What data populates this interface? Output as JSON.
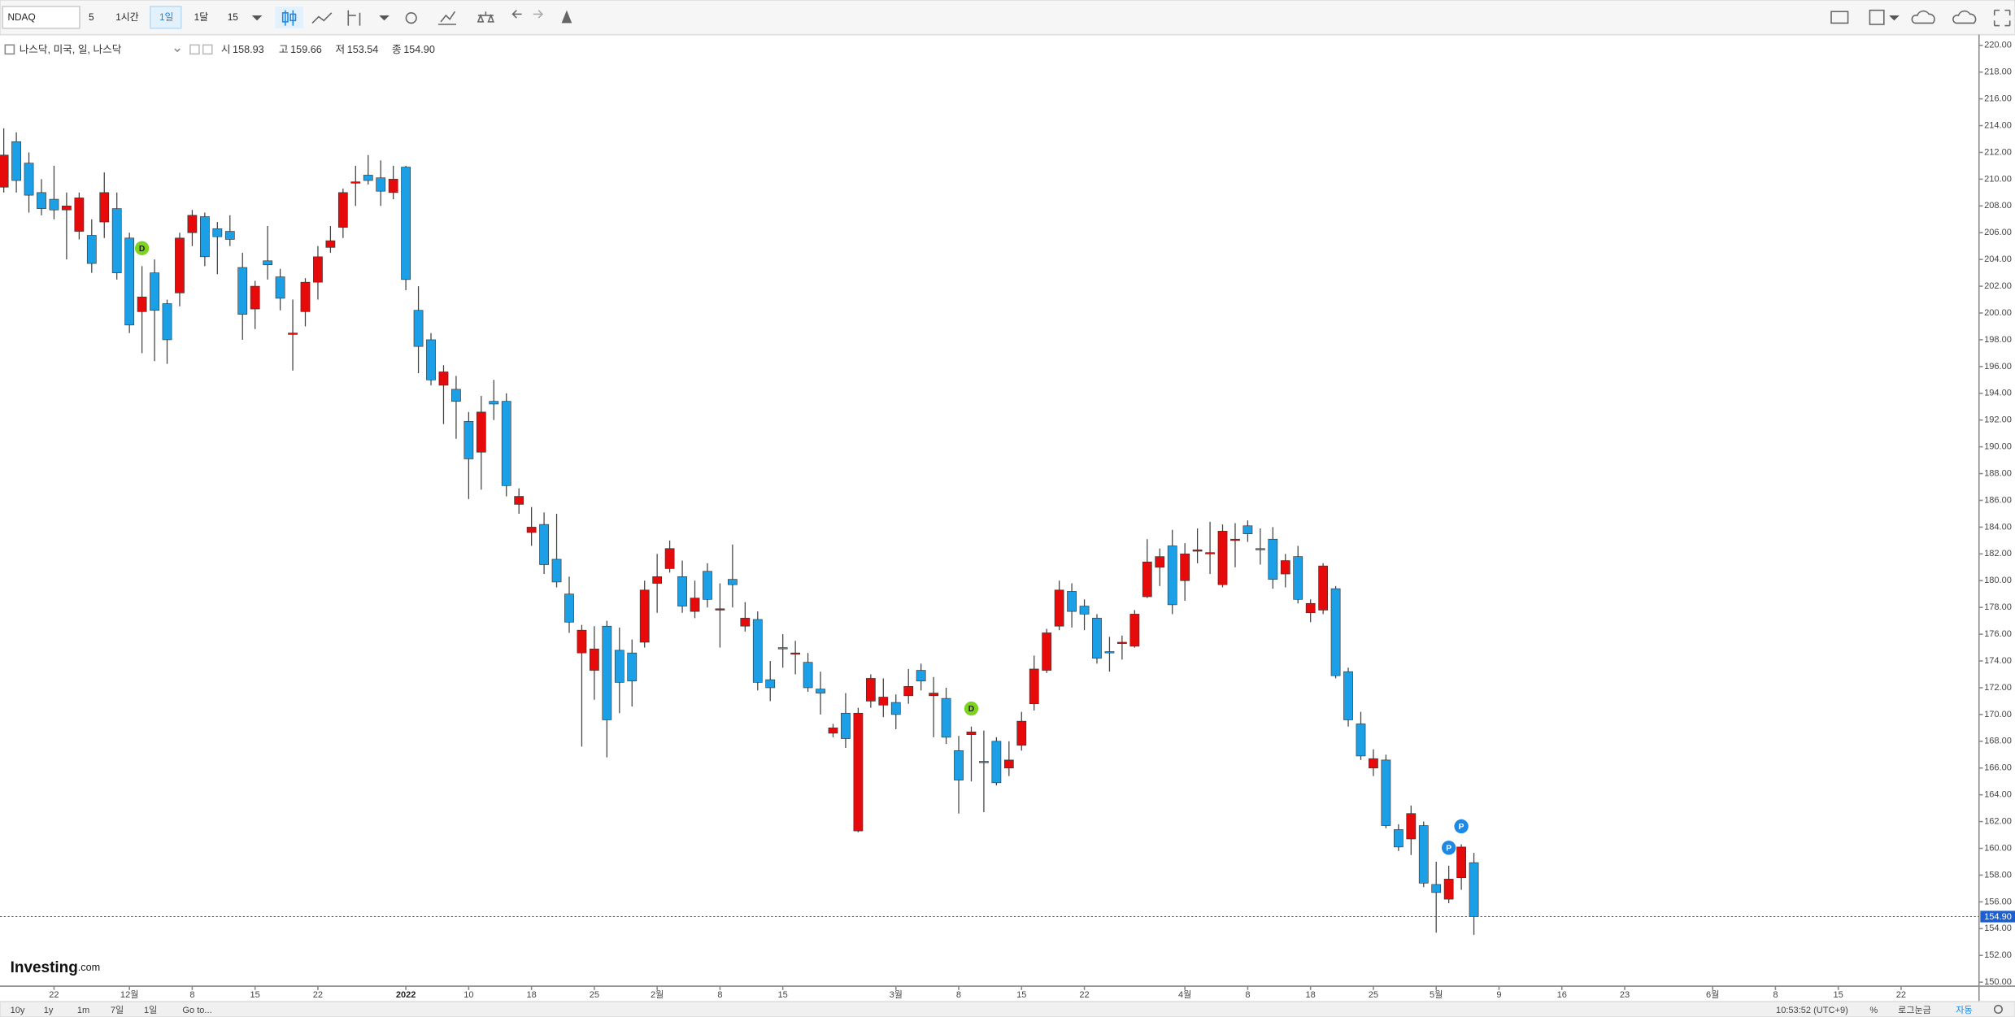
{
  "ui": {
    "toolbar": {
      "symbol": "NDAQ",
      "interval_a": "5",
      "interval_b": "1시간",
      "interval_c": "1일",
      "interval_d": "1달",
      "interval_e": "15"
    },
    "legend": {
      "name": "나스닥, 미국, 일, 나스닥",
      "open_label": "시",
      "open": "158.93",
      "high_label": "고",
      "high": "159.66",
      "low_label": "저",
      "low": "153.54",
      "close_label": "종",
      "close": "154.90"
    },
    "logo": {
      "main": "Investing",
      "suffix": ".com"
    },
    "bottom": {
      "ranges": [
        "10y",
        "1y",
        "1m",
        "7일",
        "1일"
      ],
      "goto": "Go to...",
      "time": "10:53:52 (UTC+9)",
      "percent": "%",
      "log": "로그눈금",
      "auto": "자동"
    }
  },
  "chart_data": {
    "type": "candlestick",
    "up_color": "#e60a0a",
    "down_color": "#1b9fe6",
    "x": [
      0,
      1,
      2,
      3,
      4,
      5,
      6,
      7,
      8,
      9,
      10,
      11,
      12,
      13,
      14,
      15,
      16,
      17,
      18,
      19,
      20,
      21,
      22,
      23,
      24,
      25,
      26,
      27,
      28,
      29,
      30,
      31,
      32,
      33,
      34,
      35,
      36,
      37,
      38,
      39,
      40,
      41,
      42,
      43,
      44,
      45,
      46,
      47,
      48,
      49,
      50,
      51,
      52,
      53,
      54,
      55,
      56,
      57,
      58,
      59,
      60,
      61,
      62,
      63,
      64,
      65,
      66,
      67,
      68,
      69,
      70,
      71,
      72,
      73,
      74,
      75,
      76,
      77,
      78,
      79,
      80,
      81,
      82,
      83,
      84,
      85,
      86,
      87,
      88,
      89,
      90,
      91,
      92,
      93,
      94,
      95,
      96,
      97,
      98,
      99,
      100,
      101,
      102,
      103,
      104,
      105,
      106,
      107,
      108,
      109,
      110,
      111,
      112,
      113,
      114,
      115,
      116,
      117
    ],
    "open": [
      209.4,
      212.8,
      211.2,
      209,
      208.5,
      207.7,
      206.1,
      205.8,
      206.8,
      207.8,
      205.6,
      200.1,
      203,
      200.7,
      201.5,
      206,
      207.2,
      206.3,
      206.1,
      203.4,
      200.3,
      203.9,
      202.7,
      198.4,
      200.1,
      202.3,
      204.9,
      206.4,
      209.7,
      210.3,
      210.1,
      209,
      210.9,
      200.2,
      198,
      194.6,
      194.3,
      191.9,
      189.6,
      193.4,
      193.4,
      185.7,
      183.6,
      184.2,
      181.6,
      179,
      174.6,
      173.3,
      176.6,
      174.8,
      174.6,
      175.4,
      179.8,
      180.9,
      180.3,
      177.7,
      180.7,
      177.8,
      180.1,
      176.6,
      177.1,
      172.6,
      175,
      174.5,
      173.9,
      171.9,
      168.6,
      170.1,
      161.3,
      171,
      170.7,
      170.9,
      171.4,
      173.3,
      171.4,
      171.2,
      167.3,
      168.5,
      166.5,
      168,
      166,
      167.7,
      170.8,
      173.3,
      176.6,
      179.2,
      178.1,
      177.2,
      174.7,
      175.3,
      175.1,
      178.8,
      181,
      182.6,
      180,
      182.2,
      182,
      179.7,
      183,
      184.1,
      182.4,
      183.1,
      180.5,
      181.8,
      177.6,
      177.8,
      179.4,
      173.2,
      169.3,
      166,
      166.6,
      161.4,
      160.7,
      161.7,
      157.3,
      156.2,
      157.8,
      158.93
    ],
    "high": [
      213.8,
      213.5,
      212,
      210,
      211,
      209,
      209,
      207,
      210.5,
      209,
      206,
      203.5,
      204,
      201,
      206,
      207.7,
      207.5,
      206.8,
      207.3,
      204.5,
      202.4,
      206.5,
      203.3,
      201,
      202.6,
      205,
      206.5,
      209.3,
      211,
      211.8,
      211.4,
      211,
      211,
      202,
      198.5,
      196.1,
      195.3,
      192.6,
      193.8,
      195,
      194,
      186.9,
      185.5,
      185.1,
      185,
      180.3,
      176.7,
      176.6,
      177,
      176.5,
      175.6,
      180,
      182,
      183,
      181.5,
      180,
      181.3,
      179.8,
      182.7,
      178.4,
      177.7,
      174,
      176,
      175.5,
      174.6,
      173.2,
      169.3,
      171.6,
      170.5,
      173,
      172.7,
      171.5,
      173.4,
      173.8,
      172.8,
      172,
      168.4,
      169.1,
      168.8,
      168.3,
      168,
      170.2,
      174.4,
      176.4,
      180,
      179.8,
      178.6,
      177.5,
      175.8,
      175.9,
      177.8,
      183.1,
      182.4,
      183.8,
      182.8,
      183.9,
      184.4,
      184.2,
      184.3,
      184.5,
      183.9,
      184,
      182,
      182.6,
      178.6,
      181.3,
      179.6,
      173.5,
      170.2,
      167.4,
      167,
      161.8,
      163.2,
      162,
      159,
      158.7,
      160.3,
      159.66
    ],
    "low": [
      209,
      209,
      207.5,
      207.3,
      207,
      204,
      205.5,
      203,
      205.6,
      202.5,
      198.5,
      197,
      196.4,
      196.2,
      200.5,
      205,
      203.5,
      202.9,
      205,
      198,
      198.8,
      202.5,
      200.2,
      195.7,
      199,
      201,
      204.5,
      205.6,
      208,
      209.6,
      208,
      208.5,
      201.7,
      195.5,
      194.6,
      191.7,
      190.6,
      186.1,
      186.8,
      192,
      186.3,
      185,
      182.6,
      180.5,
      179.5,
      176.1,
      167.6,
      171.1,
      166.8,
      170.1,
      170.6,
      175,
      177.6,
      180.6,
      177.6,
      177.2,
      178,
      175,
      178,
      176.2,
      171.8,
      171,
      173.5,
      173,
      171.7,
      170,
      168.3,
      167.5,
      161.2,
      170.5,
      169.8,
      168.9,
      170.8,
      171.8,
      168.3,
      167.8,
      162.6,
      165,
      162.7,
      164.7,
      165.4,
      167.3,
      170.3,
      173.1,
      176.3,
      176.5,
      176.3,
      173.8,
      173.2,
      174.1,
      175,
      178.7,
      179.6,
      177.5,
      178.5,
      181.3,
      180.5,
      179.5,
      181,
      182.9,
      181.2,
      179.4,
      179.5,
      178.3,
      176.9,
      177.5,
      172.7,
      169.1,
      166.6,
      165.4,
      161.5,
      159.8,
      159.5,
      157.1,
      153.7,
      155.9,
      156.9,
      153.54
    ],
    "close": [
      211.8,
      209.9,
      208.8,
      207.8,
      207.7,
      208,
      208.6,
      203.7,
      209,
      203,
      199.1,
      201.2,
      200.2,
      198,
      205.6,
      207.3,
      204.2,
      205.7,
      205.5,
      199.9,
      202,
      203.6,
      201.1,
      198.5,
      202.3,
      204.2,
      205.4,
      209,
      209.8,
      209.9,
      209.1,
      210,
      202.5,
      197.5,
      195,
      195.6,
      193.4,
      189.1,
      192.6,
      193.2,
      187.1,
      186.3,
      184,
      181.2,
      179.9,
      176.9,
      176.3,
      174.9,
      169.6,
      172.4,
      172.5,
      179.3,
      180.3,
      182.4,
      178.1,
      178.7,
      178.6,
      177.9,
      179.7,
      177.2,
      172.4,
      172,
      174.9,
      174.6,
      172,
      171.6,
      169,
      168.2,
      170.1,
      172.7,
      171.3,
      170,
      172.1,
      172.5,
      171.6,
      168.3,
      165.1,
      168.7,
      166.4,
      164.9,
      166.6,
      169.5,
      173.4,
      176.1,
      179.3,
      177.7,
      177.5,
      174.2,
      174.6,
      175.4,
      177.5,
      181.4,
      181.8,
      178.2,
      182,
      182.3,
      182.1,
      183.7,
      183.1,
      183.5,
      182.3,
      180.1,
      181.5,
      178.6,
      178.3,
      181.1,
      172.9,
      169.6,
      166.9,
      166.7,
      161.7,
      160.1,
      162.6,
      157.4,
      156.7,
      157.7,
      160.1,
      154.9
    ],
    "markers": [
      {
        "x": 11,
        "label": "D",
        "color": "#7ed321"
      },
      {
        "x": 77,
        "label": "D",
        "color": "#7ed321"
      },
      {
        "x": 115,
        "label": "P",
        "color": "#1e88e5"
      },
      {
        "x": 116,
        "label": "P",
        "color": "#1e88e5"
      }
    ],
    "last_price": 154.9,
    "last_price_label": "154.90",
    "last_price_color": "#1e5fd0",
    "xlim": [
      -0.3,
      157.2
    ],
    "ylim": [
      149.7,
      220.7
    ],
    "grid": false,
    "xticks": [
      {
        "value": 4,
        "label": "22"
      },
      {
        "value": 10,
        "label": "12월"
      },
      {
        "value": 15,
        "label": "8"
      },
      {
        "value": 20,
        "label": "15"
      },
      {
        "value": 25,
        "label": "22"
      },
      {
        "value": 32,
        "label": "2022"
      },
      {
        "value": 37,
        "label": "10"
      },
      {
        "value": 42,
        "label": "18"
      },
      {
        "value": 47,
        "label": "25"
      },
      {
        "value": 52,
        "label": "2월"
      },
      {
        "value": 57,
        "label": "8"
      },
      {
        "value": 62,
        "label": "15"
      },
      {
        "value": 71,
        "label": "3월"
      },
      {
        "value": 76,
        "label": "8"
      },
      {
        "value": 81,
        "label": "15"
      },
      {
        "value": 86,
        "label": "22"
      },
      {
        "value": 94,
        "label": "4월"
      },
      {
        "value": 99,
        "label": "8"
      },
      {
        "value": 104,
        "label": "18"
      },
      {
        "value": 109,
        "label": "25"
      },
      {
        "value": 114,
        "label": "5월"
      },
      {
        "value": 119,
        "label": "9"
      },
      {
        "value": 124,
        "label": "16"
      },
      {
        "value": 129,
        "label": "23"
      },
      {
        "value": 136,
        "label": "6월"
      },
      {
        "value": 141,
        "label": "8"
      },
      {
        "value": 146,
        "label": "15"
      },
      {
        "value": 151,
        "label": "22"
      }
    ],
    "yticks": [
      {
        "value": 150,
        "label": "150.00"
      },
      {
        "value": 152,
        "label": "152.00"
      },
      {
        "value": 154,
        "label": "154.00"
      },
      {
        "value": 156,
        "label": "156.00"
      },
      {
        "value": 158,
        "label": "158.00"
      },
      {
        "value": 160,
        "label": "160.00"
      },
      {
        "value": 162,
        "label": "162.00"
      },
      {
        "value": 164,
        "label": "164.00"
      },
      {
        "value": 166,
        "label": "166.00"
      },
      {
        "value": 168,
        "label": "168.00"
      },
      {
        "value": 170,
        "label": "170.00"
      },
      {
        "value": 172,
        "label": "172.00"
      },
      {
        "value": 174,
        "label": "174.00"
      },
      {
        "value": 176,
        "label": "176.00"
      },
      {
        "value": 178,
        "label": "178.00"
      },
      {
        "value": 180,
        "label": "180.00"
      },
      {
        "value": 182,
        "label": "182.00"
      },
      {
        "value": 184,
        "label": "184.00"
      },
      {
        "value": 186,
        "label": "186.00"
      },
      {
        "value": 188,
        "label": "188.00"
      },
      {
        "value": 190,
        "label": "190.00"
      },
      {
        "value": 192,
        "label": "192.00"
      },
      {
        "value": 194,
        "label": "194.00"
      },
      {
        "value": 196,
        "label": "196.00"
      },
      {
        "value": 198,
        "label": "198.00"
      },
      {
        "value": 200,
        "label": "200.00"
      },
      {
        "value": 202,
        "label": "202.00"
      },
      {
        "value": 204,
        "label": "204.00"
      },
      {
        "value": 206,
        "label": "206.00"
      },
      {
        "value": 208,
        "label": "208.00"
      },
      {
        "value": 210,
        "label": "210.00"
      },
      {
        "value": 212,
        "label": "212.00"
      },
      {
        "value": 214,
        "label": "214.00"
      },
      {
        "value": 216,
        "label": "216.00"
      },
      {
        "value": 218,
        "label": "218.00"
      },
      {
        "value": 220,
        "label": "220.00"
      }
    ]
  }
}
